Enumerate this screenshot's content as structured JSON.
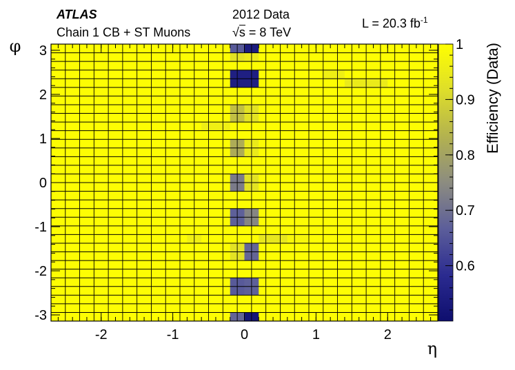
{
  "header": {
    "experiment": "ATLAS",
    "subtitle": "Chain 1 CB + ST Muons",
    "dataset": "2012 Data",
    "energy_prefix": "√",
    "energy_sym": "s",
    "energy_value": " = 8 TeV",
    "lumi_text": "L = 20.3 fb",
    "lumi_sup": "-1"
  },
  "chart_data": {
    "type": "heatmap",
    "title": "",
    "xlabel": "η",
    "ylabel": "φ",
    "zlabel": "Efficiency (Data)",
    "xlim": [
      -2.7,
      2.7
    ],
    "ylim": [
      -3.14,
      3.14
    ],
    "zlim": [
      0.5,
      1.0
    ],
    "x_ticks": [
      -2,
      -1,
      0,
      1,
      2
    ],
    "x_tick_labels": [
      "-2",
      "-1",
      "0",
      "1",
      "2"
    ],
    "y_ticks": [
      -3,
      -2,
      -1,
      0,
      1,
      2,
      3
    ],
    "y_tick_labels": [
      "-3",
      "-2",
      "-1",
      "0",
      "1",
      "2",
      "3"
    ],
    "z_ticks": [
      0.6,
      0.7,
      0.8,
      0.9,
      1.0
    ],
    "z_tick_labels": [
      "0.6",
      "0.7",
      "0.8",
      "0.9",
      "1"
    ],
    "colormap": [
      "#0e0e6e",
      "#2b2b90",
      "#5c5e9a",
      "#8c8c80",
      "#b3b24f",
      "#dede2a",
      "#ffff00"
    ],
    "default_value": 0.995,
    "eta_bins": [
      -2.7,
      -2.5,
      -2.3,
      -2.1,
      -1.9,
      -1.7,
      -1.5,
      -1.3,
      -1.1,
      -0.9,
      -0.7,
      -0.5,
      -0.3,
      -0.1,
      0.1,
      0.3,
      0.5,
      0.7,
      0.9,
      1.1,
      1.3,
      1.5,
      1.7,
      1.9,
      2.1,
      2.3,
      2.5,
      2.7
    ],
    "phi_bins": 32,
    "cells": [
      {
        "eta": [
          -0.2,
          0.0
        ],
        "phi": [
          2.94,
          3.14
        ],
        "value": 0.66
      },
      {
        "eta": [
          0.0,
          0.2
        ],
        "phi": [
          2.94,
          3.14
        ],
        "value": 0.54
      },
      {
        "eta": [
          -0.2,
          0.0
        ],
        "phi": [
          2.75,
          2.94
        ],
        "value": 0.93
      },
      {
        "eta": [
          0.0,
          0.2
        ],
        "phi": [
          2.75,
          2.94
        ],
        "value": 0.95
      },
      {
        "eta": [
          -0.2,
          0.0
        ],
        "phi": [
          2.16,
          2.55
        ],
        "value": 0.55
      },
      {
        "eta": [
          0.0,
          0.2
        ],
        "phi": [
          2.16,
          2.55
        ],
        "value": 0.55
      },
      {
        "eta": [
          1.1,
          1.4
        ],
        "phi": [
          2.36,
          2.55
        ],
        "value": 0.96
      },
      {
        "eta": [
          1.4,
          2.0
        ],
        "phi": [
          2.16,
          2.36
        ],
        "value": 0.95
      },
      {
        "eta": [
          -0.2,
          0.0
        ],
        "phi": [
          1.37,
          1.77
        ],
        "value": 0.86
      },
      {
        "eta": [
          0.0,
          0.2
        ],
        "phi": [
          1.37,
          1.77
        ],
        "value": 0.93
      },
      {
        "eta": [
          -0.6,
          -0.2
        ],
        "phi": [
          1.18,
          1.37
        ],
        "value": 0.96
      },
      {
        "eta": [
          -0.2,
          0.0
        ],
        "phi": [
          0.59,
          0.98
        ],
        "value": 0.82
      },
      {
        "eta": [
          0.0,
          0.2
        ],
        "phi": [
          0.59,
          0.98
        ],
        "value": 0.95
      },
      {
        "eta": [
          -0.2,
          0.0
        ],
        "phi": [
          -0.2,
          0.2
        ],
        "value": 0.72
      },
      {
        "eta": [
          0.0,
          0.2
        ],
        "phi": [
          -0.2,
          0.2
        ],
        "value": 0.93
      },
      {
        "eta": [
          -0.2,
          0.0
        ],
        "phi": [
          -0.98,
          -0.59
        ],
        "value": 0.67
      },
      {
        "eta": [
          0.0,
          0.2
        ],
        "phi": [
          -0.98,
          -0.59
        ],
        "value": 0.74
      },
      {
        "eta": [
          -0.8,
          -0.6
        ],
        "phi": [
          -1.37,
          -1.18
        ],
        "value": 0.96
      },
      {
        "eta": [
          0.2,
          0.6
        ],
        "phi": [
          -1.37,
          -1.18
        ],
        "value": 0.94
      },
      {
        "eta": [
          0.6,
          0.9
        ],
        "phi": [
          -1.37,
          -1.18
        ],
        "value": 0.98
      },
      {
        "eta": [
          -0.2,
          0.0
        ],
        "phi": [
          -1.77,
          -1.37
        ],
        "value": 0.93
      },
      {
        "eta": [
          0.0,
          0.2
        ],
        "phi": [
          -1.77,
          -1.37
        ],
        "value": 0.68
      },
      {
        "eta": [
          -0.2,
          0.0
        ],
        "phi": [
          -2.55,
          -2.16
        ],
        "value": 0.66
      },
      {
        "eta": [
          0.0,
          0.2
        ],
        "phi": [
          -2.55,
          -2.16
        ],
        "value": 0.67
      },
      {
        "eta": [
          -0.2,
          0.0
        ],
        "phi": [
          -3.14,
          -2.94
        ],
        "value": 0.68
      },
      {
        "eta": [
          0.0,
          0.2
        ],
        "phi": [
          -3.14,
          -2.94
        ],
        "value": 0.52
      }
    ]
  }
}
